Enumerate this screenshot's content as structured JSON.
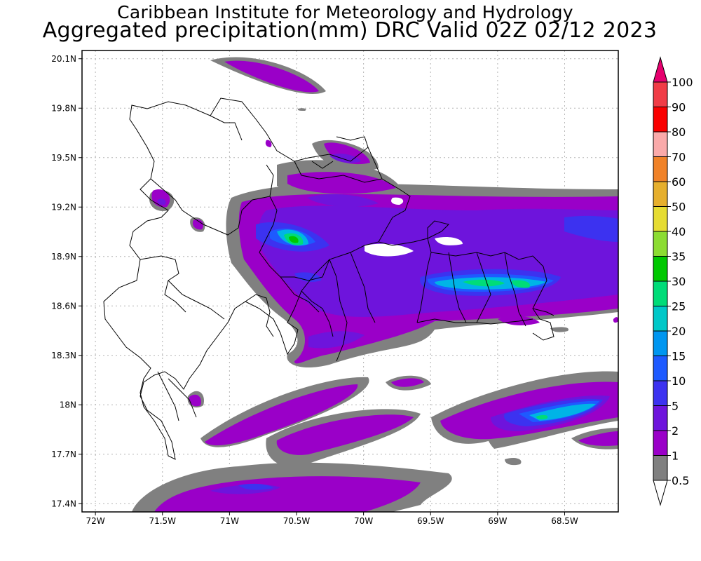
{
  "header": {
    "title": "Caribbean Institute for Meteorology and Hydrology",
    "subtitle": "Aggregated precipitation(mm) DRC Valid 02Z 02/12 2023"
  },
  "map": {
    "lon_min": -72.1,
    "lon_max": -68.1,
    "lat_min": 17.35,
    "lat_max": 20.15,
    "x_ticks": [
      {
        "lon": -72.0,
        "label": "72W"
      },
      {
        "lon": -71.5,
        "label": "71.5W"
      },
      {
        "lon": -71.0,
        "label": "71W"
      },
      {
        "lon": -70.5,
        "label": "70.5W"
      },
      {
        "lon": -70.0,
        "label": "70W"
      },
      {
        "lon": -69.5,
        "label": "69.5W"
      },
      {
        "lon": -69.0,
        "label": "69W"
      },
      {
        "lon": -68.5,
        "label": "68.5W"
      }
    ],
    "y_ticks": [
      {
        "lat": 20.1,
        "label": "20.1N"
      },
      {
        "lat": 19.8,
        "label": "19.8N"
      },
      {
        "lat": 19.5,
        "label": "19.5N"
      },
      {
        "lat": 19.2,
        "label": "19.2N"
      },
      {
        "lat": 18.9,
        "label": "18.9N"
      },
      {
        "lat": 18.6,
        "label": "18.6N"
      },
      {
        "lat": 18.3,
        "label": "18.3N"
      },
      {
        "lat": 18.0,
        "label": "18N"
      },
      {
        "lat": 17.7,
        "label": "17.7N"
      },
      {
        "lat": 17.4,
        "label": "17.4N"
      }
    ],
    "grid": true
  },
  "colorbar": {
    "levels": [
      {
        "label": "0.5",
        "color": "#ffffff"
      },
      {
        "label": "1",
        "color": "#808080"
      },
      {
        "label": "2",
        "color": "#9a00c8"
      },
      {
        "label": "5",
        "color": "#6e14dc"
      },
      {
        "label": "10",
        "color": "#3c32f0"
      },
      {
        "label": "15",
        "color": "#1e5aff"
      },
      {
        "label": "20",
        "color": "#0096f0"
      },
      {
        "label": "25",
        "color": "#00c8c8"
      },
      {
        "label": "30",
        "color": "#00dc78"
      },
      {
        "label": "35",
        "color": "#00c800"
      },
      {
        "label": "40",
        "color": "#8cdc32"
      },
      {
        "label": "50",
        "color": "#e6dc32"
      },
      {
        "label": "60",
        "color": "#e6af2d"
      },
      {
        "label": "70",
        "color": "#f08228"
      },
      {
        "label": "80",
        "color": "#faaaaa"
      },
      {
        "label": "90",
        "color": "#fa0000"
      },
      {
        "label": "100",
        "color": "#f03c46"
      }
    ],
    "top_color": "#e6006e"
  }
}
